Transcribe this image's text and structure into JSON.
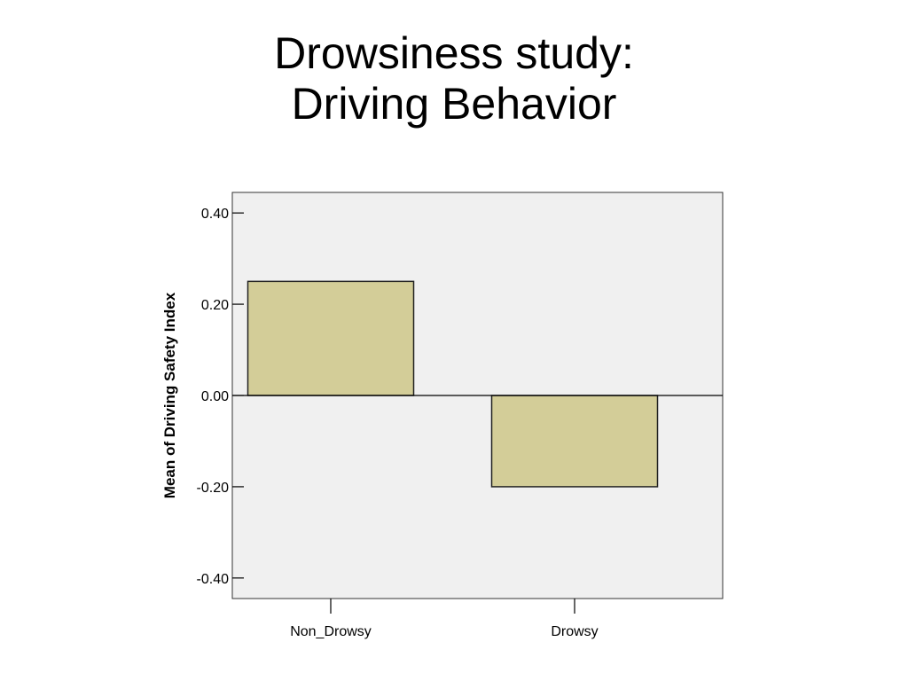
{
  "slide": {
    "title_line1": "Drowsiness study:",
    "title_line2": "Driving Behavior"
  },
  "chart_data": {
    "type": "bar",
    "categories": [
      "Non_Drowsy",
      "Drowsy"
    ],
    "values": [
      0.25,
      -0.2
    ],
    "title": "",
    "xlabel": "",
    "ylabel": "Mean of Driving Safety Index",
    "ylim": [
      -0.445,
      0.445
    ],
    "yticks": [
      0.4,
      0.2,
      0.0,
      -0.2,
      -0.4
    ],
    "ytick_labels": [
      "0.40",
      "0.20",
      "0.00",
      "-0.20",
      "-0.40"
    ],
    "grid": false,
    "legend": "none",
    "colors": {
      "bar_fill": "#d3cd98",
      "bar_stroke": "#222222",
      "plot_background": "#f0f0f0",
      "zero_line": "#000000"
    }
  }
}
